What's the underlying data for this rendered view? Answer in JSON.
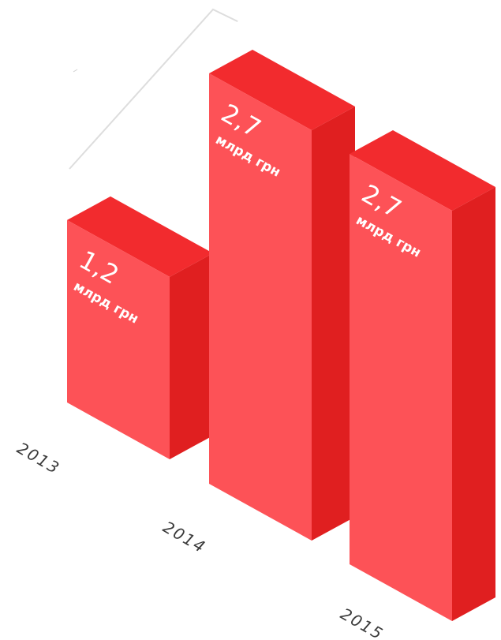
{
  "colors": {
    "bar_front": "#fd5257",
    "bar_side": "#e01f20",
    "bar_top": "#f22b2e",
    "trend_line": "#dddddd",
    "trend_arrow": "#ffffff",
    "year_text": "#3a3a3a"
  },
  "chart_data": {
    "type": "bar",
    "categories": [
      "2013",
      "2014",
      "2015"
    ],
    "values": [
      1.2,
      2.7,
      2.7
    ],
    "value_labels": [
      "1,2",
      "2,7",
      "2,7"
    ],
    "unit": "млрд грн",
    "title": "",
    "xlabel": "",
    "ylabel": "",
    "ylim": [
      0,
      2.7
    ],
    "grid": false
  }
}
